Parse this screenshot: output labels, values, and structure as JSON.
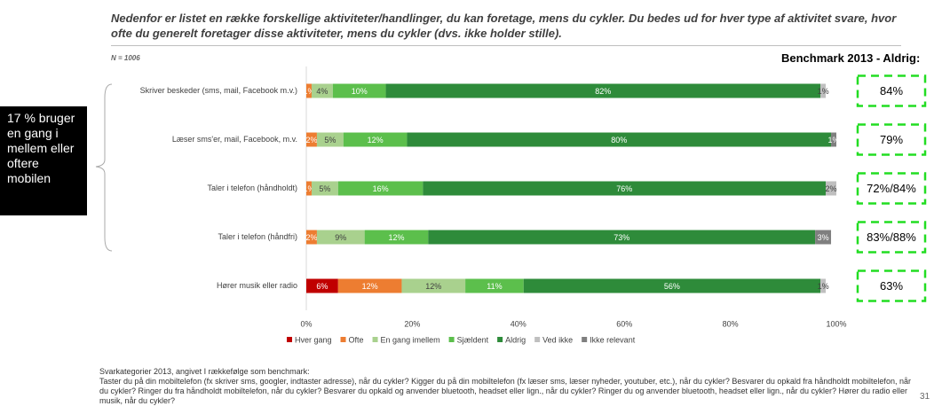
{
  "slide": {
    "heading": "Nedenfor er listet en række forskellige aktiviteter/handlinger, du kan foretage, mens du cykler. Du bedes ud for hver type af aktivitet svare, hvor ofte du generelt foretager disse aktiviteter, mens du cykler (dvs. ikke holder stille).",
    "n": "N = 1006",
    "callout": "17 % bruger en gang i mellem eller oftere mobilen",
    "benchmark": {
      "title": "Benchmark 2013 - Aldrig:",
      "values": [
        "84%",
        "79%",
        "72%/84%",
        "83%/88%",
        "63%"
      ]
    },
    "footnote_title": "Svarkategorier 2013, angivet I rækkefølge som benchmark:",
    "footnote": "Taster du på din mobiltelefon (fx skriver sms, googler, indtaster adresse), når du cykler? Kigger du på din mobiltelefon (fx læser sms, læser nyheder, youtuber, etc.), når du cykler? Besvarer du opkald fra håndholdt mobiltelefon, når du cykler? Ringer du fra håndholdt mobiltelefon, når du cykler? Besvarer du opkald og anvender bluetooth, headset eller lign., når du cykler? Ringer du og anvender bluetooth, headset eller lign., når du cykler? Hører du radio eller musik, når du cykler?",
    "page_number": "31"
  },
  "chart_data": {
    "type": "stacked_barh",
    "categories": [
      "Skriver beskeder (sms, mail, Facebook m.v.)",
      "Læser sms'er, mail, Facebook, m.v.",
      "Taler i telefon (håndholdt)",
      "Taler i telefon (håndfri)",
      "Hører musik eller radio"
    ],
    "series": [
      {
        "name": "Hver gang",
        "color": "#c00000",
        "values": [
          0,
          0,
          0,
          0,
          6
        ],
        "value_labels": [
          null,
          null,
          null,
          null,
          "6%"
        ]
      },
      {
        "name": "Ofte",
        "color": "#ed7d31",
        "values": [
          1,
          2,
          1,
          2,
          12
        ],
        "value_labels": [
          "1%",
          "2%",
          "1%",
          "2%",
          "12%"
        ]
      },
      {
        "name": "En gang imellem",
        "color": "#a9d18e",
        "values": [
          4,
          5,
          5,
          9,
          12
        ],
        "value_labels": [
          "4%",
          "5%",
          "5%",
          "9%",
          "12%"
        ]
      },
      {
        "name": "Sjældent",
        "color": "#5cbf4c",
        "values": [
          10,
          12,
          16,
          12,
          11
        ],
        "value_labels": [
          "10%",
          "12%",
          "16%",
          "12%",
          "11%"
        ]
      },
      {
        "name": "Aldrig",
        "color": "#2e8b3a",
        "values": [
          82,
          80,
          76,
          73,
          56
        ],
        "value_labels": [
          "82%",
          "80%",
          "76%",
          "73%",
          "56%"
        ]
      },
      {
        "name": "Ved ikke",
        "color": "#bfbfbf",
        "values": [
          1,
          0,
          2,
          0,
          1
        ],
        "value_labels": [
          "1%",
          null,
          "2%",
          null,
          "1%"
        ]
      },
      {
        "name": "Ikke relevant",
        "color": "#7f7f7f",
        "values": [
          0,
          1,
          0,
          3,
          0
        ],
        "value_labels": [
          null,
          "1%",
          null,
          "3%",
          null
        ]
      }
    ],
    "xlim": [
      0,
      100
    ],
    "xticks": [
      {
        "value": 0,
        "label": "0%"
      },
      {
        "value": 20,
        "label": "20%"
      },
      {
        "value": 40,
        "label": "40%"
      },
      {
        "value": 60,
        "label": "60%"
      },
      {
        "value": 80,
        "label": "80%"
      },
      {
        "value": 100,
        "label": "100%"
      }
    ],
    "legend": "bottom"
  }
}
